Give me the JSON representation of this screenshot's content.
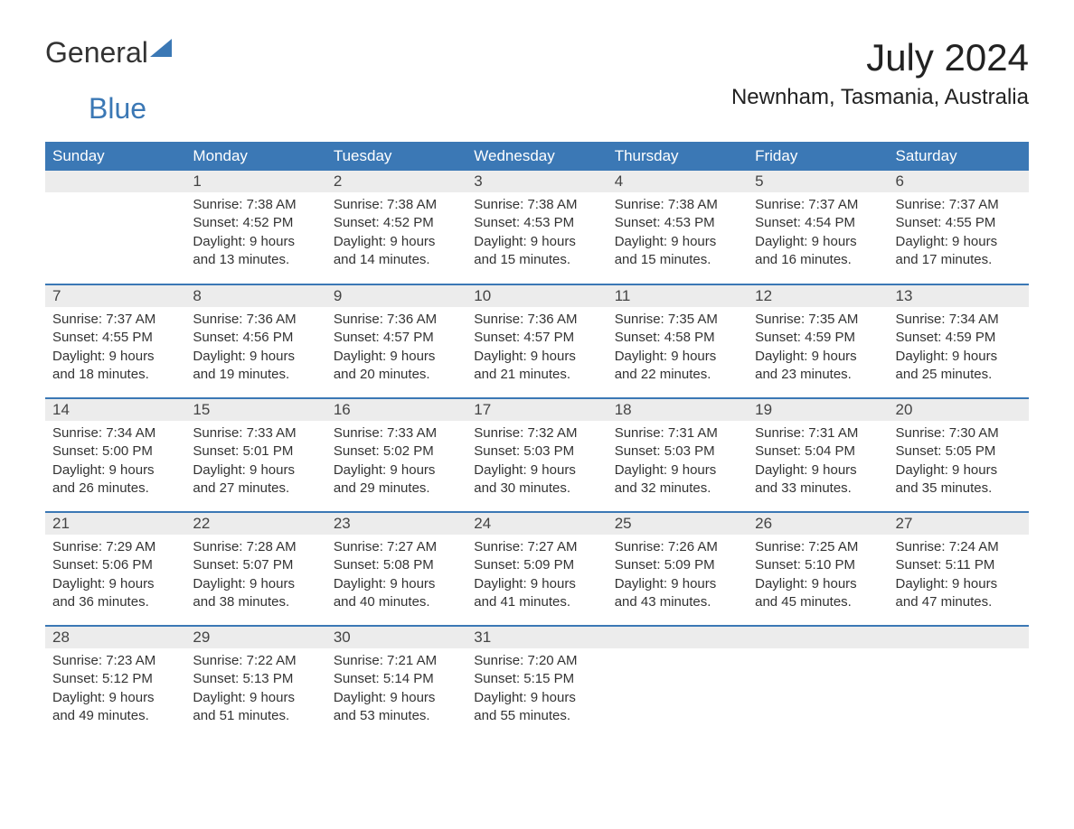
{
  "logo": {
    "text1": "General",
    "text2": "Blue"
  },
  "title": "July 2024",
  "location": "Newnham, Tasmania, Australia",
  "colors": {
    "accent": "#3b78b5",
    "header_bg": "#3b78b5",
    "daynum_bg": "#ececec"
  },
  "weekdays": [
    "Sunday",
    "Monday",
    "Tuesday",
    "Wednesday",
    "Thursday",
    "Friday",
    "Saturday"
  ],
  "weeks": [
    [
      null,
      {
        "n": "1",
        "sr": "7:38 AM",
        "ss": "4:52 PM",
        "dl": "9 hours and 13 minutes."
      },
      {
        "n": "2",
        "sr": "7:38 AM",
        "ss": "4:52 PM",
        "dl": "9 hours and 14 minutes."
      },
      {
        "n": "3",
        "sr": "7:38 AM",
        "ss": "4:53 PM",
        "dl": "9 hours and 15 minutes."
      },
      {
        "n": "4",
        "sr": "7:38 AM",
        "ss": "4:53 PM",
        "dl": "9 hours and 15 minutes."
      },
      {
        "n": "5",
        "sr": "7:37 AM",
        "ss": "4:54 PM",
        "dl": "9 hours and 16 minutes."
      },
      {
        "n": "6",
        "sr": "7:37 AM",
        "ss": "4:55 PM",
        "dl": "9 hours and 17 minutes."
      }
    ],
    [
      {
        "n": "7",
        "sr": "7:37 AM",
        "ss": "4:55 PM",
        "dl": "9 hours and 18 minutes."
      },
      {
        "n": "8",
        "sr": "7:36 AM",
        "ss": "4:56 PM",
        "dl": "9 hours and 19 minutes."
      },
      {
        "n": "9",
        "sr": "7:36 AM",
        "ss": "4:57 PM",
        "dl": "9 hours and 20 minutes."
      },
      {
        "n": "10",
        "sr": "7:36 AM",
        "ss": "4:57 PM",
        "dl": "9 hours and 21 minutes."
      },
      {
        "n": "11",
        "sr": "7:35 AM",
        "ss": "4:58 PM",
        "dl": "9 hours and 22 minutes."
      },
      {
        "n": "12",
        "sr": "7:35 AM",
        "ss": "4:59 PM",
        "dl": "9 hours and 23 minutes."
      },
      {
        "n": "13",
        "sr": "7:34 AM",
        "ss": "4:59 PM",
        "dl": "9 hours and 25 minutes."
      }
    ],
    [
      {
        "n": "14",
        "sr": "7:34 AM",
        "ss": "5:00 PM",
        "dl": "9 hours and 26 minutes."
      },
      {
        "n": "15",
        "sr": "7:33 AM",
        "ss": "5:01 PM",
        "dl": "9 hours and 27 minutes."
      },
      {
        "n": "16",
        "sr": "7:33 AM",
        "ss": "5:02 PM",
        "dl": "9 hours and 29 minutes."
      },
      {
        "n": "17",
        "sr": "7:32 AM",
        "ss": "5:03 PM",
        "dl": "9 hours and 30 minutes."
      },
      {
        "n": "18",
        "sr": "7:31 AM",
        "ss": "5:03 PM",
        "dl": "9 hours and 32 minutes."
      },
      {
        "n": "19",
        "sr": "7:31 AM",
        "ss": "5:04 PM",
        "dl": "9 hours and 33 minutes."
      },
      {
        "n": "20",
        "sr": "7:30 AM",
        "ss": "5:05 PM",
        "dl": "9 hours and 35 minutes."
      }
    ],
    [
      {
        "n": "21",
        "sr": "7:29 AM",
        "ss": "5:06 PM",
        "dl": "9 hours and 36 minutes."
      },
      {
        "n": "22",
        "sr": "7:28 AM",
        "ss": "5:07 PM",
        "dl": "9 hours and 38 minutes."
      },
      {
        "n": "23",
        "sr": "7:27 AM",
        "ss": "5:08 PM",
        "dl": "9 hours and 40 minutes."
      },
      {
        "n": "24",
        "sr": "7:27 AM",
        "ss": "5:09 PM",
        "dl": "9 hours and 41 minutes."
      },
      {
        "n": "25",
        "sr": "7:26 AM",
        "ss": "5:09 PM",
        "dl": "9 hours and 43 minutes."
      },
      {
        "n": "26",
        "sr": "7:25 AM",
        "ss": "5:10 PM",
        "dl": "9 hours and 45 minutes."
      },
      {
        "n": "27",
        "sr": "7:24 AM",
        "ss": "5:11 PM",
        "dl": "9 hours and 47 minutes."
      }
    ],
    [
      {
        "n": "28",
        "sr": "7:23 AM",
        "ss": "5:12 PM",
        "dl": "9 hours and 49 minutes."
      },
      {
        "n": "29",
        "sr": "7:22 AM",
        "ss": "5:13 PM",
        "dl": "9 hours and 51 minutes."
      },
      {
        "n": "30",
        "sr": "7:21 AM",
        "ss": "5:14 PM",
        "dl": "9 hours and 53 minutes."
      },
      {
        "n": "31",
        "sr": "7:20 AM",
        "ss": "5:15 PM",
        "dl": "9 hours and 55 minutes."
      },
      null,
      null,
      null
    ]
  ],
  "labels": {
    "sunrise": "Sunrise: ",
    "sunset": "Sunset: ",
    "daylight": "Daylight: "
  }
}
